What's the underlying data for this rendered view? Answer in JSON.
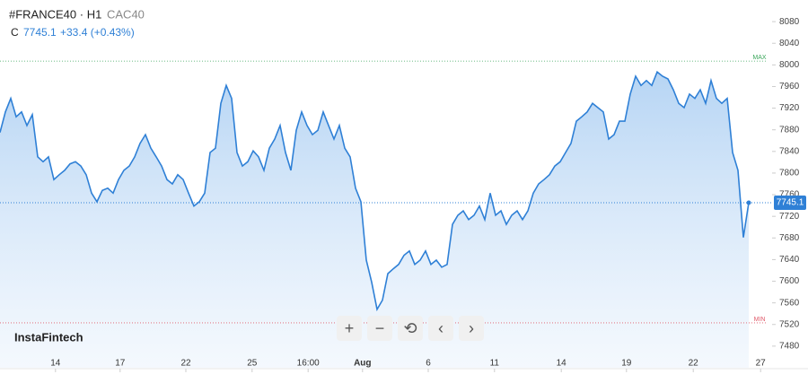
{
  "chart_data": {
    "type": "area",
    "symbol": "#FRANCE40 · H1",
    "instrument": "CAC40",
    "close_prefix": "C",
    "change": "+33.4 (+0.43%)",
    "brand": "InstaFintech",
    "color": "#2f80d6",
    "values": [
      7875,
      7913,
      7938,
      7904,
      7913,
      7888,
      7908,
      7830,
      7821,
      7830,
      7788,
      7797,
      7805,
      7817,
      7821,
      7813,
      7797,
      7763,
      7747,
      7768,
      7772,
      7763,
      7788,
      7805,
      7813,
      7830,
      7855,
      7871,
      7846,
      7830,
      7813,
      7788,
      7780,
      7797,
      7788,
      7763,
      7739,
      7747,
      7763,
      7838,
      7846,
      7929,
      7962,
      7938,
      7838,
      7813,
      7821,
      7841,
      7830,
      7805,
      7846,
      7863,
      7888,
      7838,
      7805,
      7879,
      7913,
      7888,
      7871,
      7879,
      7913,
      7888,
      7863,
      7888,
      7846,
      7830,
      7772,
      7747,
      7639,
      7598,
      7548,
      7565,
      7614,
      7623,
      7631,
      7648,
      7656,
      7631,
      7639,
      7656,
      7631,
      7639,
      7626,
      7631,
      7705,
      7722,
      7730,
      7714,
      7722,
      7739,
      7714,
      7763,
      7722,
      7730,
      7705,
      7722,
      7730,
      7714,
      7730,
      7763,
      7780,
      7788,
      7797,
      7813,
      7821,
      7838,
      7855,
      7896,
      7904,
      7913,
      7929,
      7921,
      7913,
      7863,
      7871,
      7896,
      7896,
      7946,
      7979,
      7962,
      7971,
      7962,
      7987,
      7979,
      7974,
      7954,
      7929,
      7921,
      7946,
      7938,
      7954,
      7929,
      7971,
      7938,
      7929,
      7938,
      7838,
      7805,
      7681,
      7745.1
    ],
    "xlim": [
      0,
      139
    ],
    "xticks": [
      {
        "value": 10.3,
        "label": "14"
      },
      {
        "value": 22.3,
        "label": "17"
      },
      {
        "value": 34.5,
        "label": "22"
      },
      {
        "value": 46.8,
        "label": "25"
      },
      {
        "value": 57.2,
        "label": "16:00"
      },
      {
        "value": 67.3,
        "label": "Aug"
      },
      {
        "value": 79.5,
        "label": "6"
      },
      {
        "value": 91.8,
        "label": "11"
      },
      {
        "value": 104.2,
        "label": "14"
      },
      {
        "value": 116.3,
        "label": "19"
      },
      {
        "value": 128.7,
        "label": "22"
      },
      {
        "value": 141.2,
        "label": "27"
      }
    ],
    "ylim": [
      7440,
      8120
    ],
    "yticks": [
      7480,
      7520,
      7560,
      7600,
      7640,
      7680,
      7720,
      7760,
      7800,
      7840,
      7880,
      7920,
      7960,
      8000,
      8040,
      8080
    ],
    "reference_lines": [
      {
        "label": "MAX",
        "value": 8007,
        "color": "#3aa65a"
      },
      {
        "label": "MIN",
        "value": 7523,
        "color": "#e05a6a"
      }
    ]
  }
}
